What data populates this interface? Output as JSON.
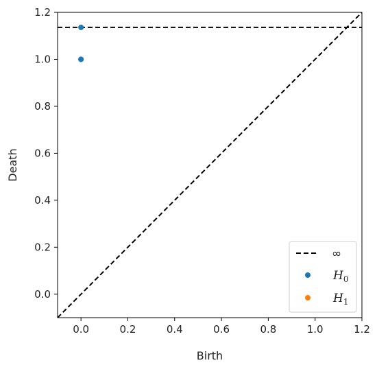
{
  "chart_data": {
    "type": "scatter",
    "title": "",
    "xlabel": "Birth",
    "ylabel": "Death",
    "xlim": [
      -0.1,
      1.2
    ],
    "ylim": [
      -0.1,
      1.2
    ],
    "xticks": [
      "0.0",
      "0.2",
      "0.4",
      "0.6",
      "0.8",
      "1.0",
      "1.2"
    ],
    "yticks": [
      "0.0",
      "0.2",
      "0.4",
      "0.6",
      "0.8",
      "1.0",
      "1.2"
    ],
    "xtick_values": [
      0.0,
      0.2,
      0.4,
      0.6,
      0.8,
      1.0,
      1.2
    ],
    "ytick_values": [
      0.0,
      0.2,
      0.4,
      0.6,
      0.8,
      1.0,
      1.2
    ],
    "grid": false,
    "legend_position": "lower-right",
    "infinity_line": {
      "label": "∞",
      "y": 1.136,
      "style": "dashed",
      "color": "#000000"
    },
    "diagonal": {
      "style": "dashed",
      "color": "#000000"
    },
    "series": [
      {
        "name": "H0",
        "name_sub": "0",
        "color": "#1f77b4",
        "points": [
          [
            0.0,
            1.136
          ],
          [
            0.0,
            1.0
          ],
          [
            0.0,
            1.0
          ]
        ]
      },
      {
        "name": "H1",
        "name_sub": "1",
        "color": "#ff7f0e",
        "points": []
      }
    ]
  }
}
